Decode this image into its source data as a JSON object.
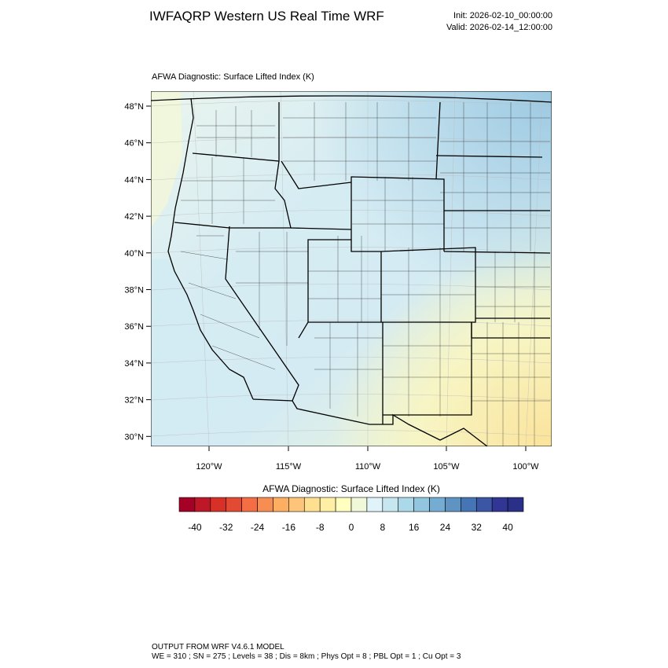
{
  "header": {
    "title": "IWFAQRP Western US Real Time WRF",
    "init": "Init: 2026-02-10_00:00:00",
    "valid": "Valid: 2026-02-14_12:00:00"
  },
  "map": {
    "title": "AFWA Diagnostic: Surface Lifted Index   (K)",
    "lat_labels": [
      "48°N",
      "46°N",
      "44°N",
      "42°N",
      "40°N",
      "38°N",
      "36°N",
      "34°N",
      "32°N",
      "30°N"
    ],
    "lon_labels": [
      "120°W",
      "115°W",
      "110°W",
      "105°W",
      "100°W"
    ]
  },
  "colorbar": {
    "title": "AFWA Diagnostic: Surface Lifted Index  (K)",
    "labels": [
      -40,
      -32,
      -24,
      -16,
      -8,
      0,
      8,
      16,
      24,
      32,
      40
    ],
    "colors": [
      "#a50026",
      "#be1828",
      "#d73027",
      "#e34a33",
      "#f46d43",
      "#f88d52",
      "#fdae61",
      "#fec57a",
      "#fee090",
      "#ffefa5",
      "#ffffbf",
      "#eff8d9",
      "#e0f3f8",
      "#c6e6f0",
      "#abd9e9",
      "#92c5de",
      "#74add1",
      "#5f93c2",
      "#4575b4",
      "#3b56a4",
      "#313695",
      "#2a2f88"
    ]
  },
  "footer": {
    "line1": "OUTPUT FROM WRF V4.6.1 MODEL",
    "line2": "WE = 310 ; SN = 275 ; Levels = 38 ; Dis = 8km ; Phys Opt = 8 ; PBL Opt = 1 ; Cu Opt = 3"
  }
}
